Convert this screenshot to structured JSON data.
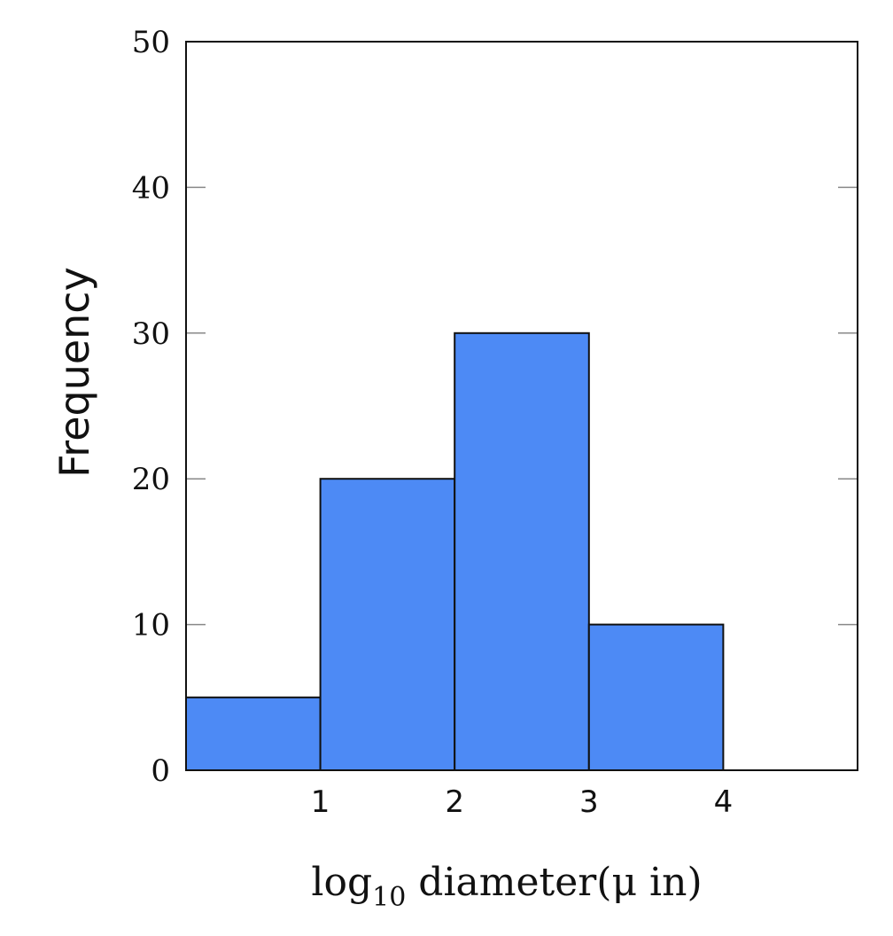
{
  "chart_data": {
    "type": "bar",
    "subtype": "histogram",
    "title": "",
    "xlabel": {
      "base": "log",
      "subscript": "10",
      "rest": " diameter(μ in)"
    },
    "ylabel": "Frequency",
    "bins": [
      {
        "from": 0,
        "to": 1,
        "value": 5
      },
      {
        "from": 1,
        "to": 2,
        "value": 20
      },
      {
        "from": 2,
        "to": 3,
        "value": 30
      },
      {
        "from": 3,
        "to": 4,
        "value": 10
      }
    ],
    "xlim": [
      0,
      5
    ],
    "ylim": [
      0,
      50
    ],
    "xticks": [
      "1",
      "2",
      "3",
      "4"
    ],
    "xtick_values": [
      1,
      2,
      3,
      4
    ],
    "yticks": [
      "0",
      "10",
      "20",
      "30",
      "40",
      "50"
    ],
    "ytick_values": [
      0,
      10,
      20,
      30,
      40,
      50
    ],
    "grid": false,
    "bar_color": "#4d8af5",
    "edge_color": "#111111"
  }
}
